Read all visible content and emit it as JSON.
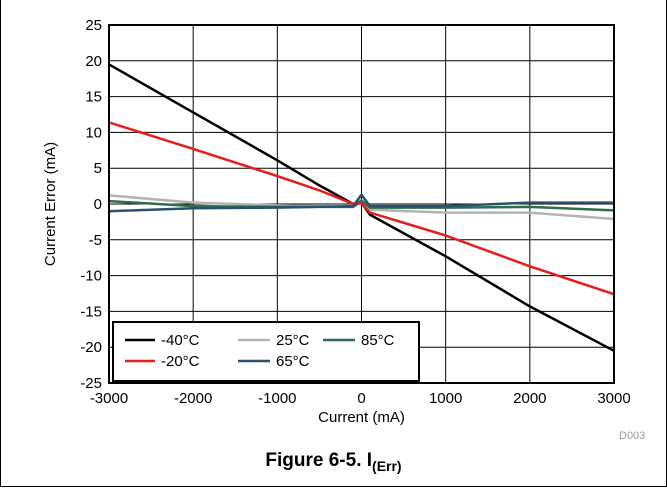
{
  "chart_data": {
    "type": "line",
    "xlabel": "Current (mA)",
    "ylabel": "Current Error (mA)",
    "xlim": [
      -3000,
      3000
    ],
    "ylim": [
      -25,
      25
    ],
    "xticks": [
      -3000,
      -2000,
      -1000,
      0,
      1000,
      2000,
      3000
    ],
    "yticks": [
      25,
      20,
      15,
      10,
      5,
      0,
      -5,
      -10,
      -15,
      -20,
      -25
    ],
    "grid": true,
    "legend_position": "bottom-left",
    "series": [
      {
        "name": "-40°C",
        "color": "#000000",
        "points": [
          [
            -3000,
            19.5
          ],
          [
            -2000,
            12.8
          ],
          [
            -1000,
            6.1
          ],
          [
            -500,
            2.6
          ],
          [
            -100,
            0.0
          ],
          [
            0,
            0.2
          ],
          [
            100,
            -1.5
          ],
          [
            1000,
            -7.3
          ],
          [
            2000,
            -14.3
          ],
          [
            3000,
            -20.5
          ]
        ]
      },
      {
        "name": "25°C",
        "color": "#b3b3b3",
        "points": [
          [
            -3000,
            1.2
          ],
          [
            -2000,
            0.2
          ],
          [
            -1000,
            -0.2
          ],
          [
            -100,
            -0.4
          ],
          [
            0,
            0.3
          ],
          [
            100,
            -0.8
          ],
          [
            1000,
            -1.2
          ],
          [
            2000,
            -1.2
          ],
          [
            3000,
            -2.1
          ]
        ]
      },
      {
        "name": "85°C",
        "color": "#2e6e4a",
        "points": [
          [
            -3000,
            0.4
          ],
          [
            -2000,
            -0.3
          ],
          [
            -1000,
            -0.4
          ],
          [
            -100,
            -0.4
          ],
          [
            0,
            0.5
          ],
          [
            100,
            -0.5
          ],
          [
            1000,
            -0.5
          ],
          [
            2000,
            -0.4
          ],
          [
            3000,
            -0.9
          ]
        ]
      },
      {
        "name": "-20°C",
        "color": "#e41d1d",
        "points": [
          [
            -3000,
            11.4
          ],
          [
            -2000,
            7.7
          ],
          [
            -1000,
            3.9
          ],
          [
            -500,
            1.9
          ],
          [
            -100,
            0.0
          ],
          [
            0,
            0.1
          ],
          [
            100,
            -1.2
          ],
          [
            1000,
            -4.4
          ],
          [
            2000,
            -8.7
          ],
          [
            3000,
            -12.6
          ]
        ]
      },
      {
        "name": "65°C",
        "color": "#29506f",
        "points": [
          [
            -3000,
            -1.0
          ],
          [
            -2000,
            -0.6
          ],
          [
            -1000,
            -0.5
          ],
          [
            -100,
            -0.3
          ],
          [
            0,
            1.3
          ],
          [
            100,
            -0.3
          ],
          [
            1000,
            -0.3
          ],
          [
            2000,
            0.2
          ],
          [
            3000,
            0.2
          ]
        ]
      }
    ],
    "legend": [
      {
        "name": "-40°C",
        "color": "#000000"
      },
      {
        "name": "25°C",
        "color": "#b3b3b3"
      },
      {
        "name": "85°C",
        "color": "#2e6e4a"
      },
      {
        "name": "-20°C",
        "color": "#e41d1d"
      },
      {
        "name": "65°C",
        "color": "#29506f"
      }
    ]
  },
  "figure_id": "D003",
  "caption": {
    "prefix": "Figure 6-5. I",
    "subscript": "(Err)"
  }
}
